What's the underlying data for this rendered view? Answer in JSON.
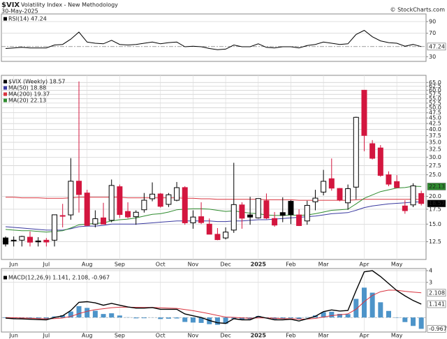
{
  "header": {
    "symbol": "$VIX",
    "name": "Volatility Index - New Methodology",
    "date": "30-May-2025",
    "credit": "© StockCharts.com"
  },
  "chart_data": [
    {
      "type": "line",
      "ylim": [
        22,
        103
      ],
      "yticks": [
        90,
        70,
        30
      ],
      "grid": true,
      "series": [
        {
          "name": "RSI(14) 47.24",
          "color": "#000000",
          "values": [
            44,
            45,
            46,
            45,
            45,
            45,
            50,
            51,
            60,
            72,
            55,
            53,
            52,
            58,
            51,
            50,
            51,
            53,
            55,
            52,
            54,
            55,
            47,
            48,
            47,
            44,
            42,
            43,
            50,
            47,
            47,
            52,
            46,
            45,
            47,
            47,
            45,
            49,
            51,
            55,
            53,
            51,
            52,
            68,
            75,
            64,
            57,
            54,
            53,
            48,
            51,
            47.24
          ]
        }
      ]
    },
    {
      "type": "candlestick",
      "name": "$VIX (Weekly) 18.57",
      "log_scale": true,
      "grid": true,
      "up_color": "#000000",
      "down_color": "#d3163f",
      "categories": [
        null,
        "Jun",
        null,
        null,
        null,
        "Jul",
        null,
        null,
        null,
        null,
        "Aug",
        null,
        null,
        null,
        "Sep",
        null,
        null,
        null,
        null,
        "Oct",
        null,
        null,
        null,
        "Nov",
        null,
        null,
        null,
        "Dec",
        null,
        null,
        null,
        "2025",
        null,
        null,
        null,
        "Feb",
        null,
        null,
        null,
        "Mar",
        null,
        null,
        null,
        null,
        "Apr",
        null,
        null,
        null,
        "May",
        null,
        null,
        null
      ],
      "open": [
        13.0,
        12.7,
        12.7,
        13.1,
        12.6,
        12.7,
        12.7,
        16.3,
        16.5,
        23.4,
        20.7,
        15.0,
        16.0,
        15.6,
        22.1,
        17.1,
        16.2,
        17.4,
        19.5,
        20.5,
        18.4,
        19.2,
        21.9,
        15.2,
        16.2,
        15.0,
        13.5,
        13.0,
        14.1,
        18.3,
        16.5,
        16.0,
        19.1,
        15.9,
        16.9,
        19.0,
        16.5,
        15.5,
        18.9,
        20.9,
        24.0,
        21.7,
        18.7,
        22.0,
        60.0,
        34.5,
        33.0,
        25.0,
        23.3,
        18.1,
        18.3,
        20.6
      ],
      "high": [
        13.2,
        13.2,
        13.3,
        13.9,
        13.1,
        13.0,
        16.5,
        18.5,
        29.7,
        65.7,
        21.4,
        17.3,
        18.7,
        23.8,
        22.6,
        18.8,
        17.3,
        20.7,
        23.1,
        20.7,
        20.7,
        23.2,
        22.2,
        17.3,
        18.8,
        15.9,
        14.4,
        14.5,
        28.3,
        18.8,
        19.9,
        19.5,
        20.6,
        17.0,
        19.8,
        19.2,
        17.5,
        19.1,
        21.4,
        26.3,
        29.6,
        21.8,
        22.6,
        45.6,
        60.1,
        35.8,
        34.0,
        25.9,
        24.9,
        19.2,
        22.9,
        21.2
      ],
      "low": [
        11.9,
        11.9,
        11.9,
        11.9,
        11.9,
        11.9,
        11.9,
        14.5,
        15.7,
        16.9,
        14.7,
        14.5,
        15.0,
        15.3,
        16.0,
        15.9,
        14.9,
        16.9,
        19.0,
        17.8,
        17.9,
        19.0,
        14.9,
        14.3,
        15.0,
        13.5,
        12.7,
        12.8,
        13.7,
        14.3,
        14.9,
        15.9,
        15.8,
        14.6,
        15.3,
        15.0,
        14.7,
        14.9,
        17.3,
        20.2,
        21.2,
        19.0,
        17.4,
        19.4,
        31.9,
        29.3,
        24.5,
        22.2,
        21.9,
        16.7,
        17.9,
        18.2
      ],
      "close": [
        12.2,
        12.66,
        13.2,
        12.44,
        12.48,
        12.46,
        16.52,
        16.39,
        23.39,
        20.37,
        14.8,
        15.86,
        15.0,
        22.38,
        16.56,
        16.15,
        16.96,
        19.21,
        20.46,
        18.03,
        20.33,
        21.88,
        15.2,
        16.14,
        15.24,
        13.51,
        12.77,
        13.81,
        18.36,
        15.95,
        16.13,
        19.54,
        15.97,
        14.85,
        16.43,
        16.54,
        14.77,
        18.21,
        19.63,
        23.37,
        21.77,
        19.28,
        21.65,
        45.31,
        37.56,
        29.65,
        24.84,
        22.68,
        21.9,
        17.24,
        22.29,
        18.57
      ],
      "lines": [
        {
          "name": "MA(50) 18.88",
          "color": "#3a3aa0",
          "values": [
            14.6,
            14.5,
            14.4,
            14.3,
            14.2,
            14.1,
            14.1,
            14.1,
            14.3,
            14.6,
            14.7,
            14.7,
            14.8,
            15.0,
            15.0,
            15.0,
            15.0,
            15.1,
            15.2,
            15.3,
            15.4,
            15.5,
            15.5,
            15.5,
            15.5,
            15.5,
            15.4,
            15.4,
            15.5,
            15.5,
            15.6,
            15.7,
            15.7,
            15.8,
            15.9,
            16.0,
            16.1,
            16.2,
            16.3,
            16.5,
            16.7,
            16.8,
            16.9,
            17.3,
            17.8,
            18.1,
            18.3,
            18.5,
            18.6,
            18.7,
            18.85,
            18.88
          ]
        },
        {
          "name": "MA(200) 19.37",
          "color": "#d9343f",
          "values": [
            19.8,
            19.8,
            19.7,
            19.7,
            19.7,
            19.6,
            19.6,
            19.6,
            19.7,
            19.8,
            19.8,
            19.8,
            19.8,
            19.8,
            19.8,
            19.7,
            19.7,
            19.7,
            19.7,
            19.7,
            19.7,
            19.7,
            19.6,
            19.6,
            19.5,
            19.5,
            19.4,
            19.4,
            19.4,
            19.4,
            19.4,
            19.4,
            19.3,
            19.3,
            19.3,
            19.3,
            19.2,
            19.2,
            19.2,
            19.2,
            19.2,
            19.2,
            19.2,
            19.3,
            19.4,
            19.4,
            19.4,
            19.4,
            19.4,
            19.4,
            19.4,
            19.37
          ]
        },
        {
          "name": "MA(20) 22.13",
          "color": "#2e8b2e",
          "values": [
            14.2,
            14.1,
            14.0,
            14.0,
            13.9,
            13.8,
            13.9,
            14.0,
            14.4,
            14.9,
            15.0,
            15.1,
            15.2,
            15.5,
            15.7,
            15.8,
            16.0,
            16.3,
            16.6,
            16.7,
            17.0,
            17.4,
            17.5,
            17.6,
            17.6,
            17.5,
            17.3,
            17.1,
            17.2,
            17.0,
            16.8,
            16.7,
            16.5,
            16.4,
            16.4,
            16.5,
            16.4,
            16.5,
            16.7,
            17.0,
            17.3,
            17.4,
            17.5,
            18.5,
            19.6,
            20.3,
            21.0,
            21.4,
            21.8,
            21.9,
            22.2,
            22.13
          ]
        }
      ],
      "ylim": [
        10.4,
        70
      ],
      "yticks": [
        {
          "value": 65,
          "label": "65.0"
        },
        62.5,
        {
          "value": 60,
          "label": "60.0"
        },
        57.5,
        {
          "value": 55,
          "label": "55.0"
        },
        52.5,
        {
          "value": 50,
          "label": "50.0"
        },
        47.5,
        {
          "value": 45,
          "label": "45.0"
        },
        42.5,
        {
          "value": 40,
          "label": "40.0"
        },
        37.5,
        {
          "value": 35,
          "label": "35.0"
        },
        32.5,
        {
          "value": 30,
          "label": "30.0"
        },
        27.5,
        {
          "value": 25,
          "label": "25.0"
        },
        {
          "value": 20,
          "label": "20.0"
        },
        17.5,
        {
          "value": 15,
          "label": "15.0"
        },
        12.5
      ]
    },
    {
      "type": "macd",
      "name": "MACD(12,26,9) 1.141, 2.108, -0.967",
      "ylim": [
        -1.24,
        4.18
      ],
      "yticks": [
        4,
        3
      ],
      "grid": true,
      "categories": [
        null,
        "Jun",
        null,
        null,
        null,
        "Jul",
        null,
        null,
        null,
        null,
        "Aug",
        null,
        null,
        null,
        "Sep",
        null,
        null,
        null,
        null,
        "Oct",
        null,
        null,
        null,
        "Nov",
        null,
        null,
        null,
        "Dec",
        null,
        null,
        null,
        "2025",
        null,
        null,
        null,
        "Feb",
        null,
        null,
        null,
        "Mar",
        null,
        null,
        null,
        null,
        "Apr",
        null,
        null,
        null,
        "May",
        null,
        null,
        null
      ],
      "series": [
        {
          "name": "MACD",
          "color": "#000000",
          "values": [
            -0.05,
            -0.1,
            -0.12,
            -0.15,
            -0.18,
            -0.2,
            0.0,
            0.15,
            0.6,
            1.3,
            1.35,
            1.25,
            1.05,
            1.2,
            1.05,
            0.9,
            0.8,
            0.8,
            0.85,
            0.7,
            0.7,
            0.7,
            0.3,
            0.15,
            0.0,
            -0.25,
            -0.45,
            -0.5,
            -0.1,
            -0.2,
            -0.2,
            0.1,
            -0.05,
            -0.2,
            -0.2,
            -0.15,
            -0.3,
            -0.1,
            0.1,
            0.5,
            0.65,
            0.55,
            0.6,
            2.3,
            3.9,
            4.0,
            3.5,
            2.9,
            2.3,
            1.85,
            1.45,
            1.141
          ]
        },
        {
          "name": "Signal",
          "color": "#d9343f",
          "values": [
            0.0,
            -0.02,
            -0.04,
            -0.06,
            -0.09,
            -0.11,
            -0.09,
            -0.04,
            0.09,
            0.33,
            0.53,
            0.67,
            0.75,
            0.84,
            0.88,
            0.88,
            0.87,
            0.86,
            0.86,
            0.83,
            0.8,
            0.78,
            0.68,
            0.58,
            0.46,
            0.32,
            0.17,
            0.04,
            0.01,
            -0.03,
            -0.06,
            -0.03,
            -0.03,
            -0.06,
            -0.09,
            -0.1,
            -0.14,
            -0.13,
            -0.08,
            0.04,
            0.16,
            0.24,
            0.31,
            0.71,
            1.35,
            1.88,
            2.2,
            2.34,
            2.33,
            2.24,
            2.17,
            2.108
          ]
        },
        {
          "name": "Histogram",
          "color": "#4d94c9",
          "values": [
            -0.05,
            -0.08,
            -0.08,
            -0.09,
            -0.09,
            -0.09,
            0.09,
            0.19,
            0.51,
            0.97,
            0.82,
            0.58,
            0.3,
            0.36,
            0.17,
            0.02,
            -0.07,
            -0.06,
            -0.01,
            -0.13,
            -0.1,
            -0.08,
            -0.38,
            -0.43,
            -0.46,
            -0.57,
            -0.62,
            -0.54,
            -0.11,
            -0.17,
            -0.14,
            0.13,
            -0.02,
            -0.14,
            -0.11,
            -0.05,
            -0.16,
            0.03,
            0.18,
            0.46,
            0.49,
            0.31,
            0.29,
            1.59,
            2.55,
            2.12,
            1.3,
            0.56,
            -0.03,
            -0.39,
            -0.72,
            -0.967
          ]
        }
      ]
    }
  ]
}
